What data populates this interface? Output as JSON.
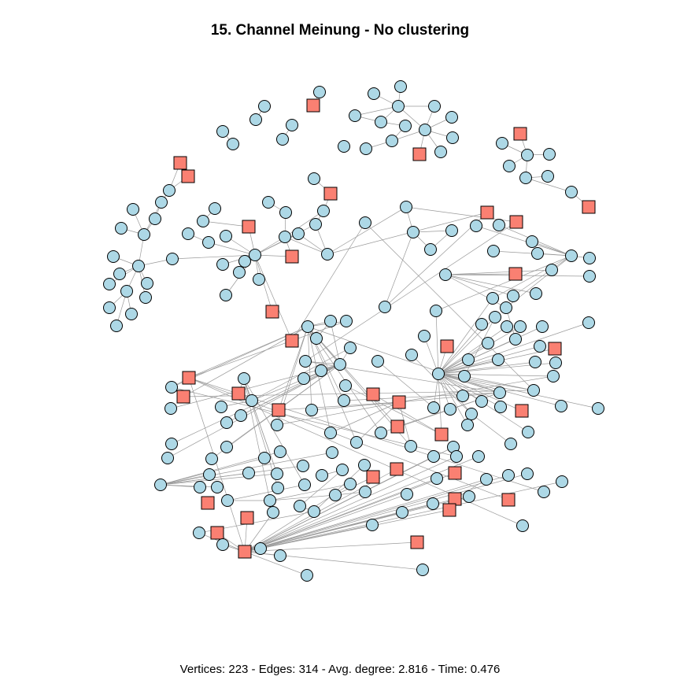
{
  "title": "15. Channel Meinung - No clustering",
  "footer": "Vertices: 223 - Edges: 314 - Avg. degree: 2.816 - Time: 0.476",
  "colors": {
    "circle_fill": "#add8e6",
    "square_fill": "#fa8072",
    "edge": "#9a9a9a",
    "stroke": "#000000"
  },
  "legend": {
    "circle": "circle-node",
    "square": "square-node"
  }
}
